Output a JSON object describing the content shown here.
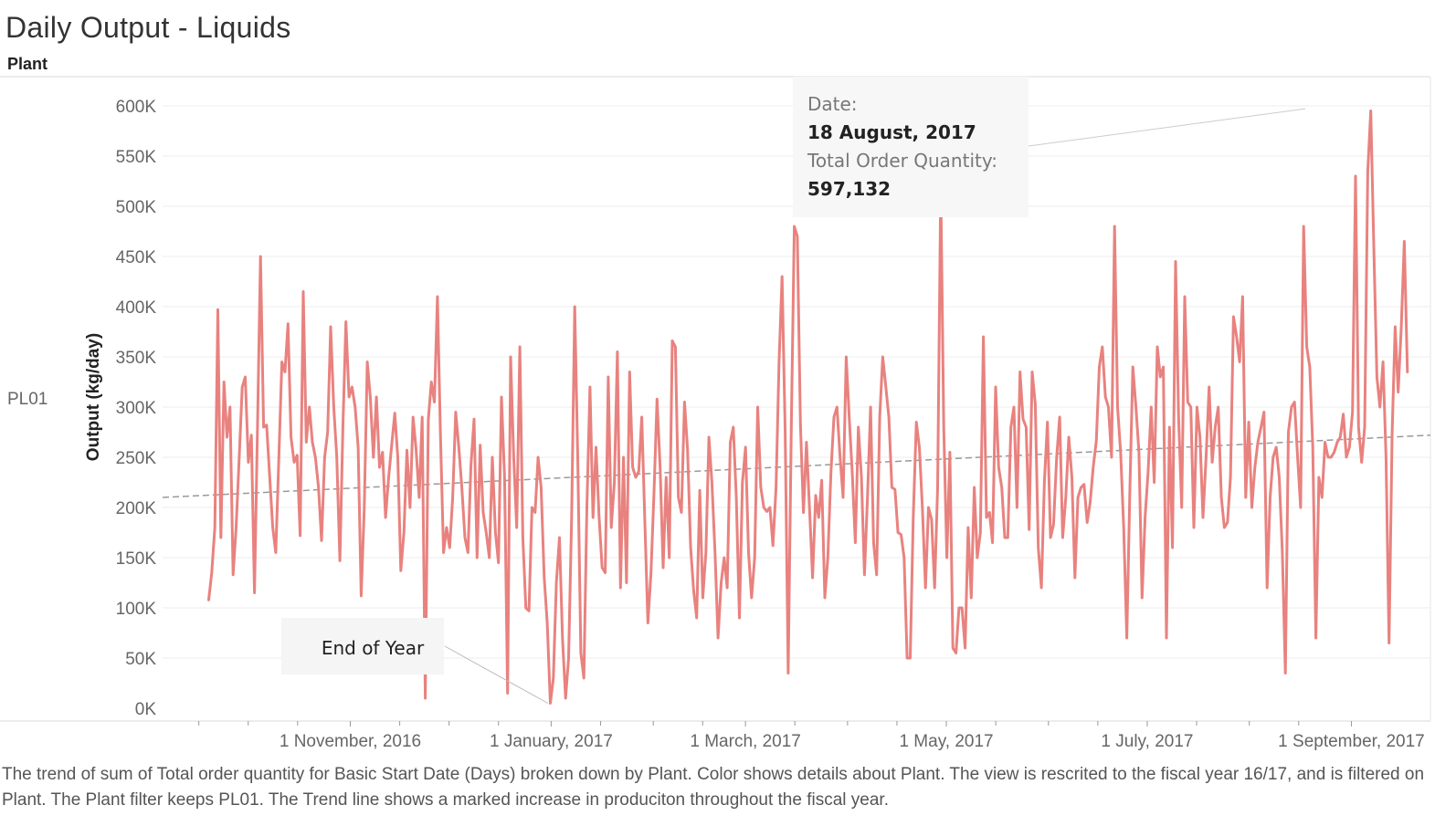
{
  "header": {
    "title": "Daily Output - Liquids",
    "plant_label": "Plant"
  },
  "row": {
    "label": "PL01"
  },
  "caption": "The trend of sum of Total order quantity for Basic Start Date (Days) broken down by Plant.  Color shows details about Plant. The view is rescrited to the fiscal year 16/17, and is filtered on Plant. The Plant filter keeps PL01. The Trend line shows a marked increase in produciton throughout the fiscal year.",
  "chart_data": {
    "type": "line",
    "title": "Daily Output - Liquids",
    "xlabel": "",
    "ylabel": "Output (kg/day)",
    "ylim": [
      0,
      620000
    ],
    "y_ticks": [
      {
        "value": 0,
        "label": "0K"
      },
      {
        "value": 50000,
        "label": "50K"
      },
      {
        "value": 100000,
        "label": "100K"
      },
      {
        "value": 150000,
        "label": "150K"
      },
      {
        "value": 200000,
        "label": "200K"
      },
      {
        "value": 250000,
        "label": "250K"
      },
      {
        "value": 300000,
        "label": "300K"
      },
      {
        "value": 350000,
        "label": "350K"
      },
      {
        "value": 400000,
        "label": "400K"
      },
      {
        "value": 450000,
        "label": "450K"
      },
      {
        "value": 500000,
        "label": "500K"
      },
      {
        "value": 550000,
        "label": "550K"
      },
      {
        "value": 600000,
        "label": "600K"
      }
    ],
    "x_range": [
      "2016-09-05",
      "2017-09-25"
    ],
    "x_ticks": [
      {
        "date": "2016-11-01",
        "label": "1 November, 2016"
      },
      {
        "date": "2017-01-01",
        "label": "1 January, 2017"
      },
      {
        "date": "2017-03-01",
        "label": "1 March, 2017"
      },
      {
        "date": "2017-05-01",
        "label": "1 May, 2017"
      },
      {
        "date": "2017-07-01",
        "label": "1 July, 2017"
      },
      {
        "date": "2017-09-01",
        "label": "1 September, 2017"
      }
    ],
    "minor_tick_dates": [
      "2016-09-16",
      "2016-10-01",
      "2016-10-16",
      "2016-11-16",
      "2016-12-01",
      "2016-12-16",
      "2017-01-16",
      "2017-02-01",
      "2017-02-16",
      "2017-03-16",
      "2017-04-01",
      "2017-04-16",
      "2017-05-16",
      "2017-06-01",
      "2017-06-16",
      "2017-07-16",
      "2017-08-01",
      "2017-08-16"
    ],
    "series": [
      {
        "color": "#e8827f",
        "x_start": "2016-09-19",
        "x_end": "2017-09-18",
        "values": [
          108000,
          135000,
          180000,
          397000,
          170000,
          325000,
          270000,
          300000,
          133000,
          180000,
          250000,
          320000,
          330000,
          245000,
          272000,
          115000,
          280000,
          450000,
          280000,
          282000,
          230000,
          180000,
          155000,
          250000,
          345000,
          335000,
          383000,
          270000,
          245000,
          252000,
          172000,
          415000,
          265000,
          300000,
          265000,
          250000,
          220000,
          167000,
          250000,
          275000,
          380000,
          300000,
          250000,
          147000,
          280000,
          385000,
          310000,
          320000,
          300000,
          260000,
          112000,
          200000,
          345000,
          310000,
          250000,
          310000,
          240000,
          255000,
          190000,
          230000,
          262000,
          294000,
          250000,
          137000,
          175000,
          257000,
          200000,
          290000,
          258000,
          210000,
          290000,
          10000,
          287000,
          325000,
          305000,
          410000,
          272000,
          155000,
          180000,
          160000,
          210000,
          295000,
          260000,
          220000,
          170000,
          155000,
          242000,
          288000,
          150000,
          262000,
          195000,
          175000,
          150000,
          250000,
          175000,
          145000,
          310000,
          230000,
          15000,
          350000,
          250000,
          180000,
          360000,
          170000,
          100000,
          97000,
          200000,
          195000,
          250000,
          220000,
          130000,
          85000,
          5000,
          30000,
          125000,
          170000,
          70000,
          10000,
          50000,
          190000,
          400000,
          250000,
          55000,
          30000,
          200000,
          320000,
          190000,
          260000,
          190000,
          140000,
          135000,
          330000,
          180000,
          225000,
          355000,
          120000,
          250000,
          125000,
          335000,
          240000,
          230000,
          236000,
          290000,
          185000,
          85000,
          135000,
          215000,
          308000,
          240000,
          140000,
          230000,
          150000,
          366000,
          360000,
          210000,
          195000,
          305000,
          258000,
          160000,
          117000,
          90000,
          217000,
          110000,
          155000,
          270000,
          225000,
          155000,
          70000,
          125000,
          150000,
          120000,
          265000,
          280000,
          210000,
          90000,
          225000,
          260000,
          155000,
          110000,
          150000,
          300000,
          220000,
          200000,
          196000,
          200000,
          162000,
          220000,
          345000,
          430000,
          275000,
          35000,
          280000,
          480000,
          470000,
          283000,
          195000,
          265000,
          198000,
          130000,
          212000,
          190000,
          227000,
          110000,
          150000,
          235000,
          290000,
          300000,
          250000,
          210000,
          350000,
          290000,
          235000,
          165000,
          280000,
          230000,
          133000,
          210000,
          300000,
          165000,
          133000,
          290000,
          350000,
          320000,
          290000,
          220000,
          218000,
          175000,
          173000,
          150000,
          50000,
          50000,
          190000,
          285000,
          260000,
          200000,
          120000,
          200000,
          188000,
          120000,
          220000,
          520000,
          280000,
          150000,
          255000,
          60000,
          55000,
          100000,
          100000,
          60000,
          180000,
          110000,
          220000,
          150000,
          175000,
          370000,
          190000,
          195000,
          165000,
          320000,
          240000,
          220000,
          170000,
          170000,
          280000,
          300000,
          200000,
          335000,
          288000,
          280000,
          178000,
          335000,
          303000,
          160000,
          120000,
          226000,
          285000,
          170000,
          183000,
          250000,
          290000,
          170000,
          210000,
          270000,
          230000,
          130000,
          210000,
          220000,
          223000,
          185000,
          205000,
          240000,
          266000,
          340000,
          360000,
          310000,
          300000,
          250000,
          480000,
          300000,
          254000,
          180000,
          70000,
          215000,
          340000,
          300000,
          255000,
          110000,
          190000,
          235000,
          300000,
          225000,
          360000,
          330000,
          340000,
          70000,
          280000,
          160000,
          445000,
          290000,
          200000,
          410000,
          305000,
          300000,
          180000,
          300000,
          270000,
          190000,
          250000,
          320000,
          245000,
          280000,
          300000,
          210000,
          180000,
          185000,
          230000,
          390000,
          370000,
          345000,
          410000,
          210000,
          285000,
          200000,
          240000,
          265000,
          280000,
          295000,
          120000,
          210000,
          250000,
          260000,
          230000,
          155000,
          35000,
          275000,
          300000,
          305000,
          250000,
          200000,
          480000,
          360000,
          340000,
          260000,
          70000,
          230000,
          210000,
          265000,
          250000,
          250000,
          255000,
          265000,
          270000,
          293000,
          250000,
          260000,
          295000,
          530000,
          280000,
          245000,
          280000,
          535000,
          595000,
          460000,
          330000,
          300000,
          345000,
          250000,
          65000,
          275000,
          380000,
          315000,
          380000,
          465000,
          335000
        ]
      }
    ],
    "trend_line": {
      "start_value": 210000,
      "end_value": 272000,
      "color": "#999999",
      "style": "dashed"
    },
    "tooltip": {
      "date_label": "Date:",
      "date_value": "18 August, 2017",
      "qty_label": "Total Order Quantity:",
      "qty_value": "597,132",
      "point_date": "2017-08-18",
      "point_value": 597132
    },
    "annotation": {
      "text": "End of Year",
      "point_date": "2016-12-31",
      "point_value": 5000
    },
    "grid": true,
    "legend": "none"
  }
}
